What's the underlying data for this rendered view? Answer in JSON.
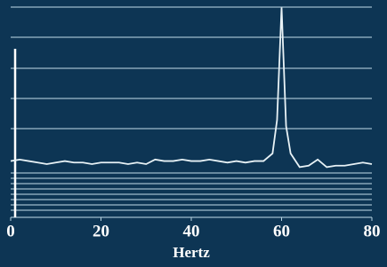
{
  "chart_data": {
    "type": "line",
    "xlabel": "Hertz",
    "x": [
      0,
      2,
      4,
      6,
      8,
      10,
      12,
      14,
      16,
      18,
      20,
      22,
      24,
      26,
      28,
      30,
      32,
      34,
      36,
      38,
      40,
      42,
      44,
      46,
      48,
      50,
      52,
      54,
      56,
      58,
      59,
      60,
      61,
      62,
      64,
      66,
      68,
      70,
      72,
      74,
      76,
      78,
      80
    ],
    "series": [
      {
        "color": "#e8f2f6",
        "values": [
          1.85,
          1.9,
          1.85,
          1.8,
          1.75,
          1.8,
          1.85,
          1.8,
          1.8,
          1.75,
          1.8,
          1.8,
          1.8,
          1.75,
          1.8,
          1.75,
          1.9,
          1.85,
          1.85,
          1.9,
          1.85,
          1.85,
          1.9,
          1.85,
          1.8,
          1.85,
          1.8,
          1.85,
          1.85,
          2.1,
          3.2,
          6.9,
          3.0,
          2.1,
          1.65,
          1.7,
          1.9,
          1.65,
          1.7,
          1.7,
          1.75,
          1.8,
          1.75
        ]
      }
    ],
    "xlim": [
      0,
      80
    ],
    "ylim": [
      0,
      7
    ],
    "xticks": [
      0,
      20,
      40,
      60,
      80
    ]
  }
}
